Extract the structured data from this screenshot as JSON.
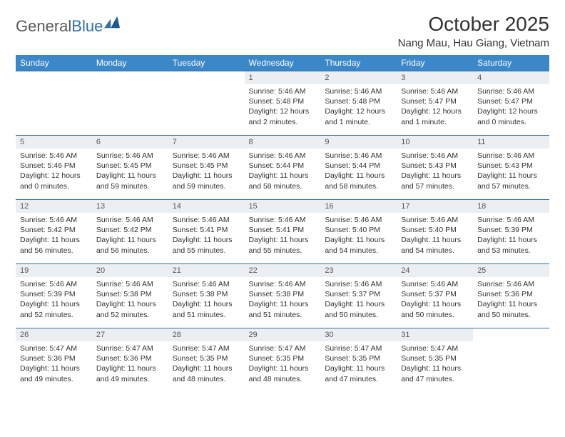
{
  "logo": {
    "text_gray": "General",
    "text_blue": "Blue"
  },
  "title": "October 2025",
  "location": "Nang Mau, Hau Giang, Vietnam",
  "colors": {
    "header_bg": "#3b87c8",
    "header_text": "#ffffff",
    "daynum_bg": "#eceff1",
    "daynum_text": "#555555",
    "body_text": "#333333",
    "rule": "#2f6fa8",
    "logo_gray": "#5a5a5a",
    "logo_blue": "#2f6fa8",
    "background": "#ffffff"
  },
  "typography": {
    "title_fontsize": 28,
    "location_fontsize": 15,
    "dayhead_fontsize": 12,
    "daynum_fontsize": 11,
    "body_fontsize": 10.5
  },
  "day_headers": [
    "Sunday",
    "Monday",
    "Tuesday",
    "Wednesday",
    "Thursday",
    "Friday",
    "Saturday"
  ],
  "weeks": [
    [
      null,
      null,
      null,
      {
        "n": "1",
        "sunrise": "5:46 AM",
        "sunset": "5:48 PM",
        "daylight": "12 hours and 2 minutes."
      },
      {
        "n": "2",
        "sunrise": "5:46 AM",
        "sunset": "5:48 PM",
        "daylight": "12 hours and 1 minute."
      },
      {
        "n": "3",
        "sunrise": "5:46 AM",
        "sunset": "5:47 PM",
        "daylight": "12 hours and 1 minute."
      },
      {
        "n": "4",
        "sunrise": "5:46 AM",
        "sunset": "5:47 PM",
        "daylight": "12 hours and 0 minutes."
      }
    ],
    [
      {
        "n": "5",
        "sunrise": "5:46 AM",
        "sunset": "5:46 PM",
        "daylight": "12 hours and 0 minutes."
      },
      {
        "n": "6",
        "sunrise": "5:46 AM",
        "sunset": "5:45 PM",
        "daylight": "11 hours and 59 minutes."
      },
      {
        "n": "7",
        "sunrise": "5:46 AM",
        "sunset": "5:45 PM",
        "daylight": "11 hours and 59 minutes."
      },
      {
        "n": "8",
        "sunrise": "5:46 AM",
        "sunset": "5:44 PM",
        "daylight": "11 hours and 58 minutes."
      },
      {
        "n": "9",
        "sunrise": "5:46 AM",
        "sunset": "5:44 PM",
        "daylight": "11 hours and 58 minutes."
      },
      {
        "n": "10",
        "sunrise": "5:46 AM",
        "sunset": "5:43 PM",
        "daylight": "11 hours and 57 minutes."
      },
      {
        "n": "11",
        "sunrise": "5:46 AM",
        "sunset": "5:43 PM",
        "daylight": "11 hours and 57 minutes."
      }
    ],
    [
      {
        "n": "12",
        "sunrise": "5:46 AM",
        "sunset": "5:42 PM",
        "daylight": "11 hours and 56 minutes."
      },
      {
        "n": "13",
        "sunrise": "5:46 AM",
        "sunset": "5:42 PM",
        "daylight": "11 hours and 56 minutes."
      },
      {
        "n": "14",
        "sunrise": "5:46 AM",
        "sunset": "5:41 PM",
        "daylight": "11 hours and 55 minutes."
      },
      {
        "n": "15",
        "sunrise": "5:46 AM",
        "sunset": "5:41 PM",
        "daylight": "11 hours and 55 minutes."
      },
      {
        "n": "16",
        "sunrise": "5:46 AM",
        "sunset": "5:40 PM",
        "daylight": "11 hours and 54 minutes."
      },
      {
        "n": "17",
        "sunrise": "5:46 AM",
        "sunset": "5:40 PM",
        "daylight": "11 hours and 54 minutes."
      },
      {
        "n": "18",
        "sunrise": "5:46 AM",
        "sunset": "5:39 PM",
        "daylight": "11 hours and 53 minutes."
      }
    ],
    [
      {
        "n": "19",
        "sunrise": "5:46 AM",
        "sunset": "5:39 PM",
        "daylight": "11 hours and 52 minutes."
      },
      {
        "n": "20",
        "sunrise": "5:46 AM",
        "sunset": "5:38 PM",
        "daylight": "11 hours and 52 minutes."
      },
      {
        "n": "21",
        "sunrise": "5:46 AM",
        "sunset": "5:38 PM",
        "daylight": "11 hours and 51 minutes."
      },
      {
        "n": "22",
        "sunrise": "5:46 AM",
        "sunset": "5:38 PM",
        "daylight": "11 hours and 51 minutes."
      },
      {
        "n": "23",
        "sunrise": "5:46 AM",
        "sunset": "5:37 PM",
        "daylight": "11 hours and 50 minutes."
      },
      {
        "n": "24",
        "sunrise": "5:46 AM",
        "sunset": "5:37 PM",
        "daylight": "11 hours and 50 minutes."
      },
      {
        "n": "25",
        "sunrise": "5:46 AM",
        "sunset": "5:36 PM",
        "daylight": "11 hours and 50 minutes."
      }
    ],
    [
      {
        "n": "26",
        "sunrise": "5:47 AM",
        "sunset": "5:36 PM",
        "daylight": "11 hours and 49 minutes."
      },
      {
        "n": "27",
        "sunrise": "5:47 AM",
        "sunset": "5:36 PM",
        "daylight": "11 hours and 49 minutes."
      },
      {
        "n": "28",
        "sunrise": "5:47 AM",
        "sunset": "5:35 PM",
        "daylight": "11 hours and 48 minutes."
      },
      {
        "n": "29",
        "sunrise": "5:47 AM",
        "sunset": "5:35 PM",
        "daylight": "11 hours and 48 minutes."
      },
      {
        "n": "30",
        "sunrise": "5:47 AM",
        "sunset": "5:35 PM",
        "daylight": "11 hours and 47 minutes."
      },
      {
        "n": "31",
        "sunrise": "5:47 AM",
        "sunset": "5:35 PM",
        "daylight": "11 hours and 47 minutes."
      },
      null
    ]
  ],
  "labels": {
    "sunrise": "Sunrise:",
    "sunset": "Sunset:",
    "daylight": "Daylight:"
  }
}
